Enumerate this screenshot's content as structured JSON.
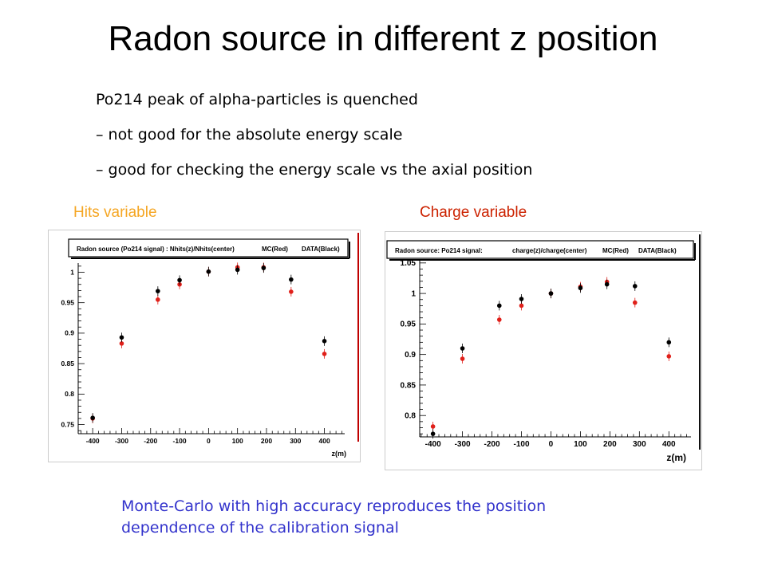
{
  "title": "Radon source in different z position",
  "bullets": [
    "Po214 peak of alpha-particles is quenched",
    "– not good for the absolute energy scale",
    "– good for checking the energy scale vs the axial position"
  ],
  "left_label": "Hits variable",
  "right_label": "Charge variable",
  "summary": "Monte-Carlo with high accuracy reproduces the position dependence of the calibration signal",
  "colors": {
    "left_label": "#f5a623",
    "right_label": "#cc2200",
    "summary": "#3333cc",
    "mc": "#e0201a",
    "data": "#000000",
    "frame_left": "#c00000",
    "frame_right": "#111111"
  },
  "chart_data": [
    {
      "type": "scatter",
      "legend_text": "Radon source (Po214 signal) : Nhits(z)/Nhits(center)",
      "legend_mc": "MC(Red)",
      "legend_data": "DATA(Black)",
      "xlabel": "z(m)",
      "xticks": [
        "-400",
        "-300",
        "-200",
        "-100",
        "0",
        "100",
        "200",
        "300",
        "400"
      ],
      "yticks": [
        "0.75",
        "0.8",
        "0.85",
        "0.9",
        "0.95",
        "1"
      ],
      "xlim": [
        -450,
        470
      ],
      "ylim": [
        0.735,
        1.015
      ],
      "series": [
        {
          "name": "MC(Red)",
          "points": [
            [
              -400,
              0.76
            ],
            [
              -300,
              0.883
            ],
            [
              -175,
              0.955
            ],
            [
              -100,
              0.98
            ],
            [
              0,
              1.001
            ],
            [
              100,
              1.008
            ],
            [
              190,
              1.008
            ],
            [
              285,
              0.968
            ],
            [
              400,
              0.866
            ]
          ]
        },
        {
          "name": "DATA(Black)",
          "points": [
            [
              -400,
              0.761
            ],
            [
              -300,
              0.893
            ],
            [
              -175,
              0.969
            ],
            [
              -100,
              0.987
            ],
            [
              0,
              1.001
            ],
            [
              100,
              1.004
            ],
            [
              190,
              1.007
            ],
            [
              285,
              0.988
            ],
            [
              400,
              0.887
            ]
          ]
        }
      ]
    },
    {
      "type": "scatter",
      "legend_text": "Radon source: Po214 signal:",
      "legend_ratio": "charge(z)/charge(center)",
      "legend_mc": "MC(Red)",
      "legend_data": "DATA(Black)",
      "xlabel": "z(m)",
      "xticks": [
        "-400",
        "-300",
        "-200",
        "-100",
        "0",
        "100",
        "200",
        "300",
        "400"
      ],
      "yticks": [
        "0.8",
        "0.85",
        "0.9",
        "0.95",
        "1",
        "1.05"
      ],
      "xlim": [
        -445,
        475
      ],
      "ylim": [
        0.765,
        1.055
      ],
      "series": [
        {
          "name": "MC(Red)",
          "points": [
            [
              -400,
              0.782
            ],
            [
              -300,
              0.893
            ],
            [
              -175,
              0.957
            ],
            [
              -100,
              0.98
            ],
            [
              0,
              1.0
            ],
            [
              100,
              1.011
            ],
            [
              190,
              1.019
            ],
            [
              285,
              0.985
            ],
            [
              400,
              0.897
            ]
          ]
        },
        {
          "name": "DATA(Black)",
          "points": [
            [
              -400,
              0.77
            ],
            [
              -300,
              0.91
            ],
            [
              -175,
              0.98
            ],
            [
              -100,
              0.991
            ],
            [
              0,
              1.0
            ],
            [
              100,
              1.009
            ],
            [
              190,
              1.015
            ],
            [
              285,
              1.012
            ],
            [
              400,
              0.92
            ]
          ]
        }
      ]
    }
  ]
}
